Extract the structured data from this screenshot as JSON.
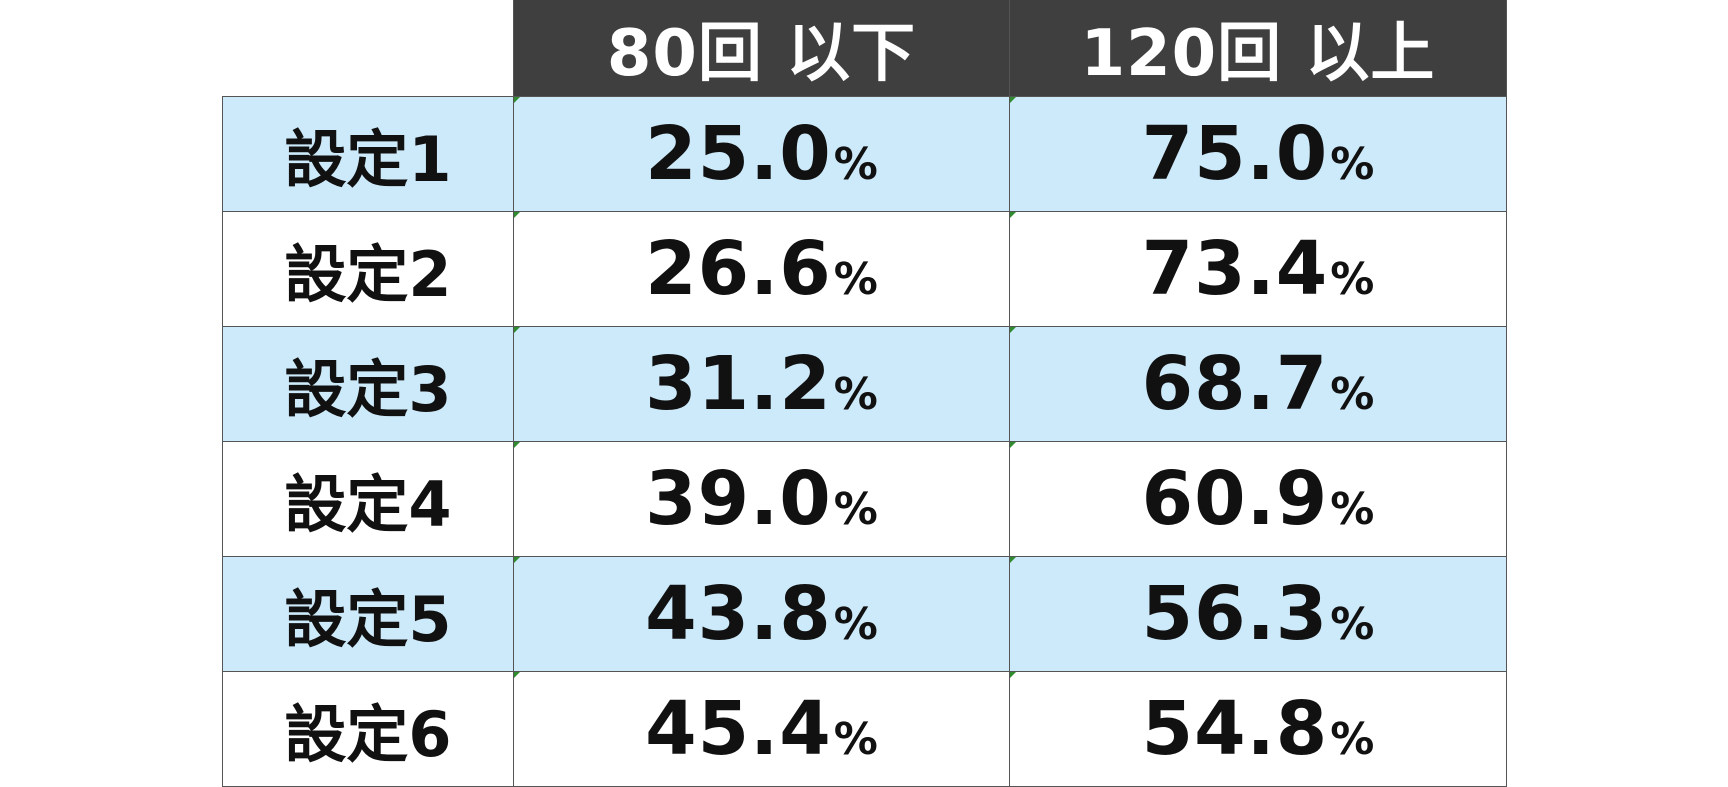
{
  "header": {
    "col1": "80回 以下",
    "col2": "120回 以上"
  },
  "rows": [
    {
      "label": "設定1",
      "v1": "25.0",
      "v2": "75.0"
    },
    {
      "label": "設定2",
      "v1": "26.6",
      "v2": "73.4"
    },
    {
      "label": "設定3",
      "v1": "31.2",
      "v2": "68.7"
    },
    {
      "label": "設定4",
      "v1": "39.0",
      "v2": "60.9"
    },
    {
      "label": "設定5",
      "v1": "43.8",
      "v2": "56.3"
    },
    {
      "label": "設定6",
      "v1": "45.4",
      "v2": "54.8"
    }
  ],
  "unit": "%",
  "colors": {
    "header_bg": "#3f3f3f",
    "header_text": "#ffffff",
    "shaded_row": "#cdeafa",
    "plain_row": "#ffffff",
    "text": "#111111"
  }
}
